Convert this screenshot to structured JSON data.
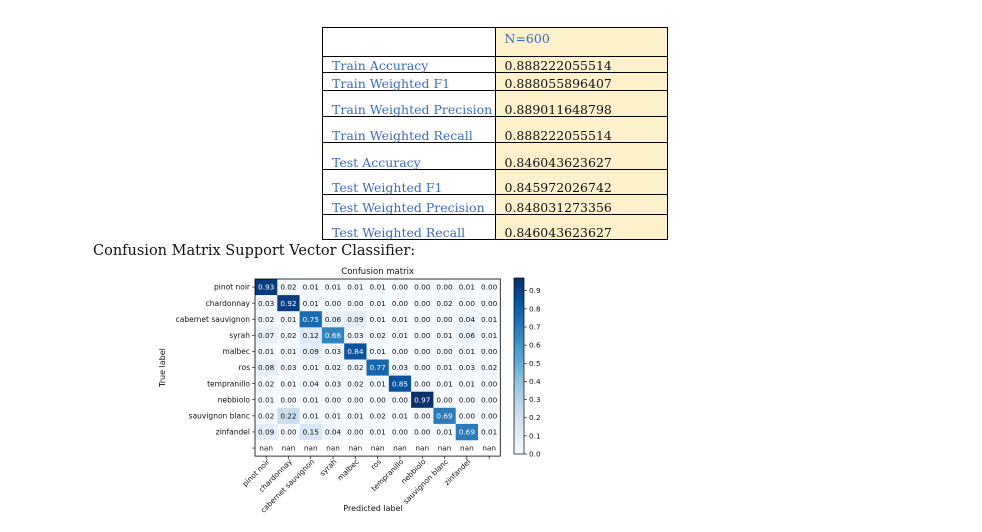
{
  "table": {
    "header": "N=600",
    "rows": [
      {
        "label": "Train Accuracy",
        "value": "0.888222055514"
      },
      {
        "label": "Train Weighted F1",
        "value": "0.888055896407"
      },
      {
        "label": "Train Weighted Precision",
        "value": "0.889011648798"
      },
      {
        "label": "Train Weighted Recall",
        "value": "0.888222055514"
      },
      {
        "label": "Test Accuracy",
        "value": "0.846043623627"
      },
      {
        "label": "Test Weighted F1",
        "value": "0.845972026742"
      },
      {
        "label": "Test Weighted Precision",
        "value": "0.848031273356"
      },
      {
        "label": "Test Weighted Recall",
        "value": "0.846043623627"
      }
    ]
  },
  "caption": "Confusion Matrix Support Vector Classifier:",
  "chart_data": {
    "type": "heatmap",
    "title": "Confusion matrix",
    "xlabel": "Predicted label",
    "ylabel": "True label",
    "rows": [
      "pinot noir",
      "chardonnay",
      "cabernet sauvignon",
      "syrah",
      "malbec",
      "ros",
      "tempranillo",
      "nebbiolo",
      "sauvignon blanc",
      "zinfandel",
      ""
    ],
    "cols": [
      "pinot noir",
      "chardonnay",
      "cabernet sauvignon",
      "syrah",
      "malbec",
      "ros",
      "tempranillo",
      "nebbiolo",
      "sauvignon blanc",
      "zinfandel",
      ""
    ],
    "values": [
      [
        "0.93",
        "0.02",
        "0.01",
        "0.01",
        "0.01",
        "0.01",
        "0.00",
        "0.00",
        "0.00",
        "0.01",
        "0.00"
      ],
      [
        "0.03",
        "0.92",
        "0.01",
        "0.00",
        "0.00",
        "0.01",
        "0.00",
        "0.00",
        "0.02",
        "0.00",
        "0.00"
      ],
      [
        "0.02",
        "0.01",
        "0.75",
        "0.06",
        "0.09",
        "0.01",
        "0.01",
        "0.00",
        "0.00",
        "0.04",
        "0.01"
      ],
      [
        "0.07",
        "0.02",
        "0.12",
        "0.66",
        "0.03",
        "0.02",
        "0.01",
        "0.00",
        "0.01",
        "0.06",
        "0.01"
      ],
      [
        "0.01",
        "0.01",
        "0.09",
        "0.03",
        "0.84",
        "0.01",
        "0.00",
        "0.00",
        "0.00",
        "0.01",
        "0.00"
      ],
      [
        "0.08",
        "0.03",
        "0.01",
        "0.02",
        "0.02",
        "0.77",
        "0.03",
        "0.00",
        "0.01",
        "0.03",
        "0.02"
      ],
      [
        "0.02",
        "0.01",
        "0.04",
        "0.03",
        "0.02",
        "0.01",
        "0.85",
        "0.00",
        "0.01",
        "0.01",
        "0.00"
      ],
      [
        "0.01",
        "0.00",
        "0.01",
        "0.00",
        "0.00",
        "0.00",
        "0.00",
        "0.97",
        "0.00",
        "0.00",
        "0.00"
      ],
      [
        "0.02",
        "0.22",
        "0.01",
        "0.01",
        "0.01",
        "0.02",
        "0.01",
        "0.00",
        "0.69",
        "0.00",
        "0.00"
      ],
      [
        "0.09",
        "0.00",
        "0.15",
        "0.04",
        "0.00",
        "0.01",
        "0.00",
        "0.00",
        "0.01",
        "0.69",
        "0.01"
      ],
      [
        "nan",
        "nan",
        "nan",
        "nan",
        "nan",
        "nan",
        "nan",
        "nan",
        "nan",
        "nan",
        "nan"
      ]
    ],
    "colorbar": {
      "min": 0.0,
      "max": 0.97,
      "ticks": [
        "0.0",
        "0.1",
        "0.2",
        "0.3",
        "0.4",
        "0.5",
        "0.6",
        "0.7",
        "0.8",
        "0.9"
      ]
    },
    "colors": {
      "low": "#f7fbff",
      "high": "#08306b"
    },
    "grid": false
  }
}
